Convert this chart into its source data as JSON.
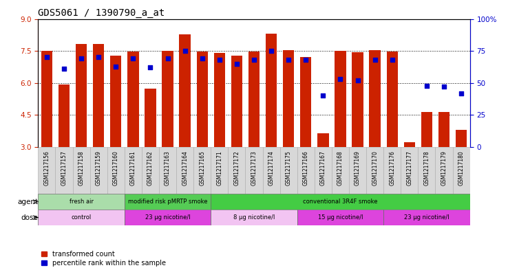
{
  "title": "GDS5061 / 1390790_a_at",
  "samples": [
    "GSM1217156",
    "GSM1217157",
    "GSM1217158",
    "GSM1217159",
    "GSM1217160",
    "GSM1217161",
    "GSM1217162",
    "GSM1217163",
    "GSM1217164",
    "GSM1217165",
    "GSM1217171",
    "GSM1217172",
    "GSM1217173",
    "GSM1217174",
    "GSM1217175",
    "GSM1217166",
    "GSM1217167",
    "GSM1217168",
    "GSM1217169",
    "GSM1217170",
    "GSM1217176",
    "GSM1217177",
    "GSM1217178",
    "GSM1217179",
    "GSM1217180"
  ],
  "bar_values": [
    7.52,
    5.93,
    7.82,
    7.83,
    7.27,
    7.48,
    5.73,
    7.52,
    8.28,
    7.47,
    7.42,
    7.27,
    7.48,
    8.32,
    7.55,
    7.22,
    3.65,
    7.52,
    7.43,
    7.55,
    7.48,
    3.22,
    4.65,
    4.63,
    3.82
  ],
  "percentile_values": [
    70,
    61,
    69,
    70,
    63,
    69,
    62,
    69,
    75,
    69,
    68,
    65,
    68,
    75,
    68,
    68,
    40,
    53,
    52,
    68,
    68,
    null,
    48,
    47,
    42
  ],
  "ylim_left": [
    3,
    9
  ],
  "ylim_right": [
    0,
    100
  ],
  "yticks_left": [
    3,
    4.5,
    6,
    7.5,
    9
  ],
  "yticks_right": [
    0,
    25,
    50,
    75,
    100
  ],
  "bar_color": "#cc2200",
  "dot_color": "#0000cc",
  "bar_width": 0.65,
  "agent_row": [
    {
      "label": "fresh air",
      "start": 0,
      "end": 5,
      "color": "#aaddaa"
    },
    {
      "label": "modified risk pMRTP smoke",
      "start": 5,
      "end": 10,
      "color": "#55cc55"
    },
    {
      "label": "conventional 3R4F smoke",
      "start": 10,
      "end": 25,
      "color": "#44cc44"
    }
  ],
  "dose_row": [
    {
      "label": "control",
      "start": 0,
      "end": 5,
      "color": "#f2c4f2"
    },
    {
      "label": "23 μg nicotine/l",
      "start": 5,
      "end": 10,
      "color": "#dd44dd"
    },
    {
      "label": "8 μg nicotine/l",
      "start": 10,
      "end": 15,
      "color": "#f2c4f2"
    },
    {
      "label": "15 μg nicotine/l",
      "start": 15,
      "end": 20,
      "color": "#dd44dd"
    },
    {
      "label": "23 μg nicotine/l",
      "start": 20,
      "end": 25,
      "color": "#dd44dd"
    }
  ],
  "legend_items": [
    {
      "label": "transformed count",
      "color": "#cc2200"
    },
    {
      "label": "percentile rank within the sample",
      "color": "#0000cc"
    }
  ],
  "bg_color": "#ffffff",
  "axis_color_left": "#cc2200",
  "axis_color_right": "#0000cc",
  "xtick_bg": "#dddddd",
  "title_fontsize": 10,
  "tick_fontsize": 7.5,
  "label_fontsize": 6.5,
  "row_label_fontsize": 7.5,
  "legend_fontsize": 7
}
